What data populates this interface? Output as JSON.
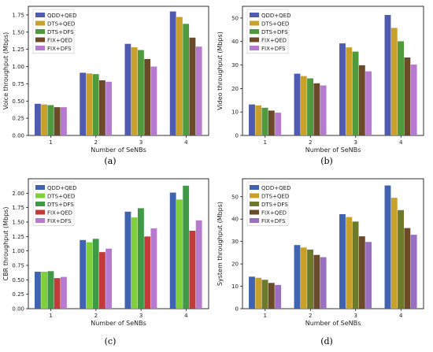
{
  "chart_data": [
    {
      "panel": "(a)",
      "type": "bar",
      "categories": [
        "1",
        "2",
        "3",
        "4"
      ],
      "xlabel": "Number of SeNBs",
      "ylabel": "Voice throughput (Mbps)",
      "ylim": [
        0,
        1.875
      ],
      "yticks": [
        "0.00",
        "0.25",
        "0.50",
        "0.75",
        "1.00",
        "1.25",
        "1.50",
        "1.75"
      ],
      "legend_position": "top-left",
      "series": [
        {
          "name": "QDD+QED",
          "color": "#4f5bb0",
          "values": [
            0.46,
            0.91,
            1.33,
            1.8
          ]
        },
        {
          "name": "DTS+QED",
          "color": "#c9a12a",
          "values": [
            0.45,
            0.9,
            1.28,
            1.72
          ]
        },
        {
          "name": "DTS+DFS",
          "color": "#4f9a3c",
          "values": [
            0.44,
            0.89,
            1.24,
            1.62
          ]
        },
        {
          "name": "FIX+QED",
          "color": "#6b4a2a",
          "values": [
            0.41,
            0.8,
            1.11,
            1.42
          ]
        },
        {
          "name": "FIX+DFS",
          "color": "#b67ad0",
          "values": [
            0.41,
            0.78,
            1.0,
            1.29
          ]
        }
      ]
    },
    {
      "panel": "(b)",
      "type": "bar",
      "categories": [
        "1",
        "2",
        "3",
        "4"
      ],
      "xlabel": "Number of SeNBs",
      "ylabel": "Video throughput (Mbps)",
      "ylim": [
        0,
        55
      ],
      "yticks": [
        "0",
        "10",
        "20",
        "30",
        "40",
        "50"
      ],
      "legend_position": "top-left",
      "series": [
        {
          "name": "QDD+QED",
          "color": "#4f5bb0",
          "values": [
            13.2,
            26.3,
            39.2,
            51.3
          ]
        },
        {
          "name": "DTS+QED",
          "color": "#c9a12a",
          "values": [
            12.8,
            25.3,
            37.5,
            45.8
          ]
        },
        {
          "name": "DTS+DFS",
          "color": "#4f9a3c",
          "values": [
            11.8,
            24.3,
            35.7,
            40.1
          ]
        },
        {
          "name": "FIX+QED",
          "color": "#6b4a2a",
          "values": [
            10.6,
            22.2,
            29.9,
            33.2
          ]
        },
        {
          "name": "FIX+DFS",
          "color": "#b67ad0",
          "values": [
            9.7,
            21.3,
            27.3,
            30.2
          ]
        }
      ]
    },
    {
      "panel": "(c)",
      "type": "bar",
      "categories": [
        "1",
        "2",
        "3",
        "4"
      ],
      "xlabel": "Number of SeNBs",
      "ylabel": "CBR throughput (Mbps)",
      "ylim": [
        0,
        2.25
      ],
      "yticks": [
        "0.00",
        "0.25",
        "0.50",
        "0.75",
        "1.00",
        "1.25",
        "1.50",
        "1.75",
        "2.00"
      ],
      "legend_position": "top-left",
      "series": [
        {
          "name": "QDD+QED",
          "color": "#3f63b0",
          "values": [
            0.64,
            1.19,
            1.68,
            2.01
          ]
        },
        {
          "name": "DTS+QED",
          "color": "#7fd03a",
          "values": [
            0.64,
            1.15,
            1.58,
            1.89
          ]
        },
        {
          "name": "DTS+DFS",
          "color": "#3f9a45",
          "values": [
            0.65,
            1.21,
            1.74,
            2.13
          ]
        },
        {
          "name": "FIX+QED",
          "color": "#c33a3a",
          "values": [
            0.53,
            0.98,
            1.25,
            1.35
          ]
        },
        {
          "name": "FIX+DFS",
          "color": "#b67ad0",
          "values": [
            0.55,
            1.04,
            1.39,
            1.53
          ]
        }
      ]
    },
    {
      "panel": "(d)",
      "type": "bar",
      "categories": [
        "1",
        "2",
        "3",
        "4"
      ],
      "xlabel": "Number of SeNBs",
      "ylabel": "System throughput (Mbps)",
      "ylim": [
        0,
        58
      ],
      "yticks": [
        "0",
        "10",
        "20",
        "30",
        "40",
        "50"
      ],
      "legend_position": "top-left",
      "series": [
        {
          "name": "QDD+QED",
          "color": "#3f63b0",
          "values": [
            14.3,
            28.4,
            42.2,
            55.0
          ]
        },
        {
          "name": "DTS+QED",
          "color": "#c9a12a",
          "values": [
            13.8,
            27.3,
            40.9,
            49.5
          ]
        },
        {
          "name": "DTS+DFS",
          "color": "#6d7a2a",
          "values": [
            12.9,
            26.4,
            38.9,
            44.0
          ]
        },
        {
          "name": "FIX+QED",
          "color": "#6b4a2a",
          "values": [
            11.5,
            24.0,
            32.3,
            36.0
          ]
        },
        {
          "name": "FIX+DFS",
          "color": "#9a6fc2",
          "values": [
            10.6,
            23.0,
            29.8,
            33.0
          ]
        }
      ]
    }
  ]
}
